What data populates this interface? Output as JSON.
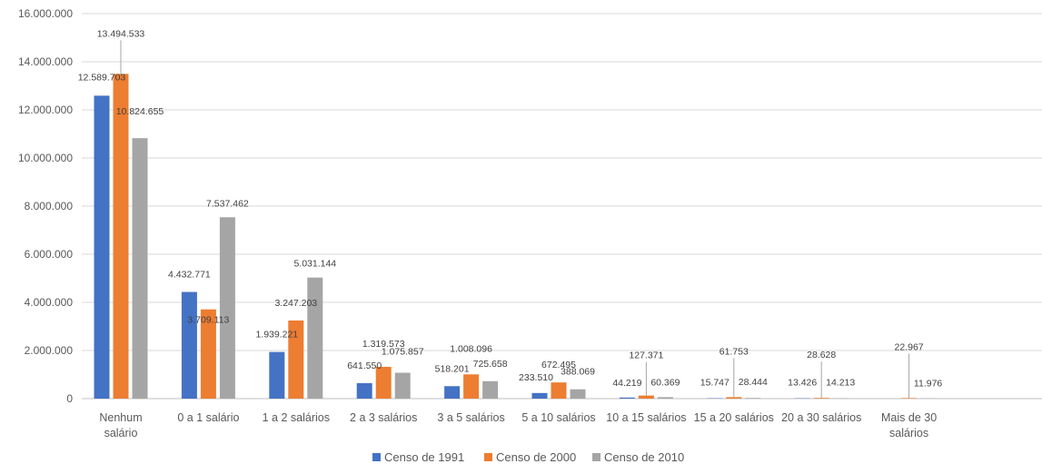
{
  "chart_data": {
    "type": "bar",
    "categories": [
      "Nenhum salário",
      "0 a 1 salário",
      "1 a 2 salários",
      "2 a 3 salários",
      "3 a 5 salários",
      "5 a 10 salários",
      "10 a 15 salários",
      "15 a 20 salários",
      "20 a 30 salários",
      "Mais de 30 salários"
    ],
    "series": [
      {
        "name": "Censo de 1991",
        "color": "#4472C4",
        "values": [
          12589703,
          4432771,
          1939221,
          641550,
          518201,
          233510,
          44219,
          15747,
          13426,
          0
        ],
        "labels": [
          "12.589.703",
          "4.432.771",
          "1.939.221",
          "641.550",
          "518.201",
          "233.510",
          "44.219",
          "15.747",
          "13.426",
          null
        ]
      },
      {
        "name": "Censo de 2000",
        "color": "#ED7D31",
        "values": [
          13494533,
          3709113,
          3247203,
          1319573,
          1008096,
          672495,
          127371,
          61753,
          28628,
          22967
        ],
        "labels": [
          "13.494.533",
          "3.709.113",
          "3.247.203",
          "1.319.573",
          "1.008.096",
          "672.495",
          "127.371",
          "61.753",
          "28.628",
          "22.967"
        ]
      },
      {
        "name": "Censo de 2010",
        "color": "#A5A5A5",
        "values": [
          10824655,
          7537462,
          5031144,
          1075857,
          725658,
          388069,
          60369,
          28444,
          14213,
          11976
        ],
        "labels": [
          "10.824.655",
          "7.537.462",
          "5.031.144",
          "1.075.857",
          "725.658",
          "388.069",
          "60.369",
          "28.444",
          "14.213",
          "11.976"
        ]
      }
    ],
    "ylim": [
      0,
      16000000
    ],
    "yticks": [
      "0",
      "2.000.000",
      "4.000.000",
      "6.000.000",
      "8.000.000",
      "10.000.000",
      "12.000.000",
      "14.000.000",
      "16.000.000"
    ],
    "grid": true,
    "legend": "bottom"
  }
}
